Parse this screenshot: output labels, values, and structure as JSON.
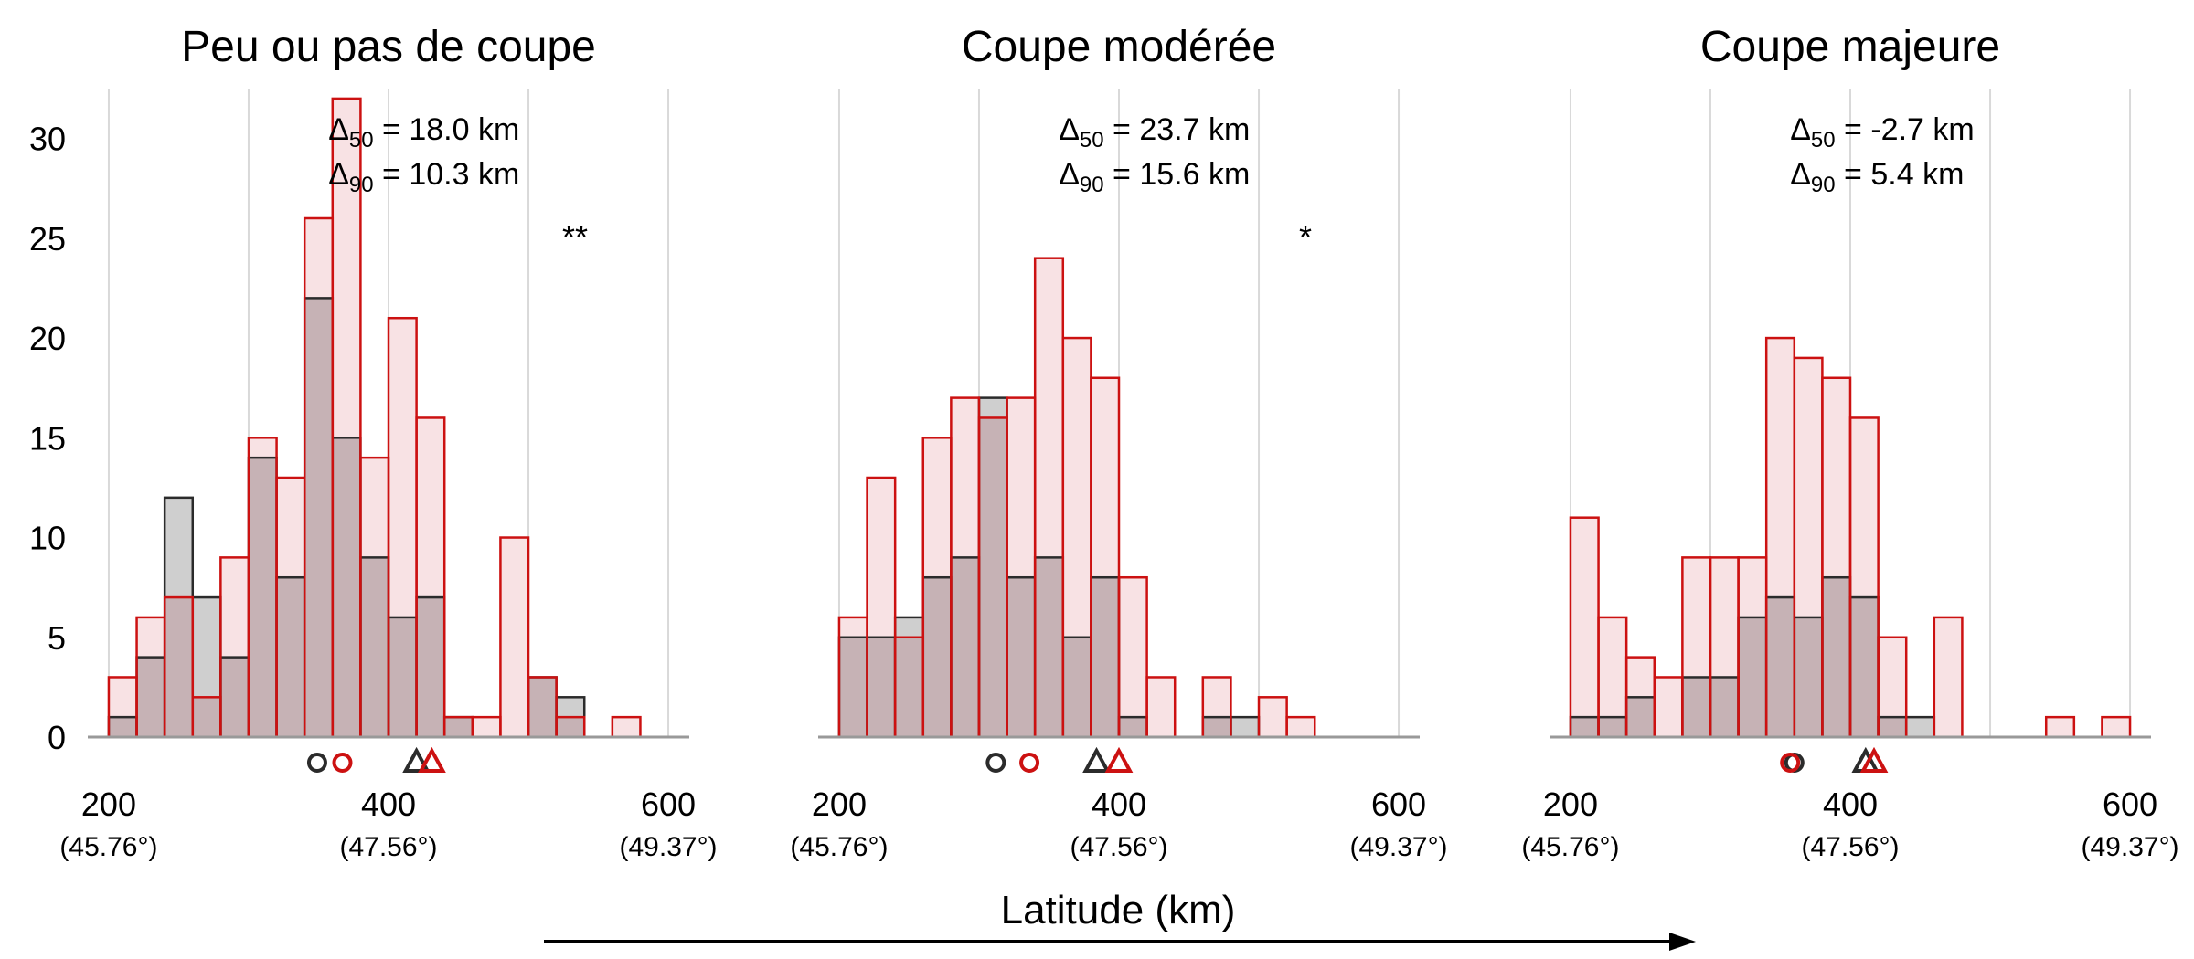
{
  "colors": {
    "red": "#cc1111",
    "red_fill": "#f8e2e4",
    "grey_fill": "#cfcfcf",
    "overlap_fill": "#c6b2b5",
    "dark": "#2b2b2b",
    "grid": "#d9d9d9",
    "axis": "#999999"
  },
  "xlabel": "Latitude (km)",
  "xticks": [
    {
      "value": 200,
      "label": "200",
      "sub": "(45.76°)"
    },
    {
      "value": 400,
      "label": "400",
      "sub": "(47.56°)"
    },
    {
      "value": 600,
      "label": "600",
      "sub": "(49.37°)"
    }
  ],
  "yticks": [
    0,
    5,
    10,
    15,
    20,
    25,
    30
  ],
  "chart_data": {
    "type": "bar",
    "x_range": [
      185,
      615
    ],
    "y_range": [
      0,
      32.5
    ],
    "bin_start": 200,
    "bin_width": 20,
    "series_names": [
      "grey",
      "red"
    ],
    "panels": [
      {
        "title": "Peu ou pas de coupe",
        "delta50_value": "= 18.0 km",
        "delta90_value": "= 10.3 km",
        "significance": "**",
        "grey": [
          1,
          4,
          12,
          7,
          4,
          14,
          8,
          22,
          15,
          9,
          6,
          7,
          1,
          0,
          0,
          3,
          2,
          0,
          0,
          0
        ],
        "red": [
          3,
          6,
          7,
          2,
          9,
          15,
          13,
          26,
          32,
          14,
          21,
          16,
          1,
          1,
          10,
          3,
          1,
          0,
          1,
          0
        ],
        "grey_median": 349,
        "red_median": 367,
        "grey_p90": 420,
        "red_p90": 431
      },
      {
        "title": "Coupe modérée",
        "delta50_value": "= 23.7 km",
        "delta90_value": "= 15.6 km",
        "significance": "*",
        "grey": [
          5,
          5,
          6,
          8,
          9,
          17,
          8,
          9,
          5,
          8,
          1,
          0,
          0,
          1,
          1,
          0,
          0,
          0,
          0,
          0
        ],
        "red": [
          6,
          13,
          5,
          15,
          17,
          16,
          17,
          24,
          20,
          18,
          8,
          3,
          0,
          3,
          0,
          2,
          1,
          0,
          0,
          0
        ],
        "grey_median": 312,
        "red_median": 336,
        "grey_p90": 384,
        "red_p90": 400
      },
      {
        "title": "Coupe majeure",
        "delta50_value": "= -2.7 km",
        "delta90_value": "= 5.4 km",
        "significance": "",
        "grey": [
          1,
          1,
          2,
          0,
          3,
          3,
          6,
          7,
          6,
          8,
          7,
          1,
          1,
          0,
          0,
          0,
          0,
          0,
          0,
          0
        ],
        "red": [
          11,
          6,
          4,
          3,
          9,
          9,
          9,
          20,
          19,
          18,
          16,
          5,
          0,
          6,
          0,
          0,
          0,
          1,
          0,
          1
        ],
        "grey_median": 360,
        "red_median": 357,
        "grey_p90": 411,
        "red_p90": 417
      }
    ]
  }
}
